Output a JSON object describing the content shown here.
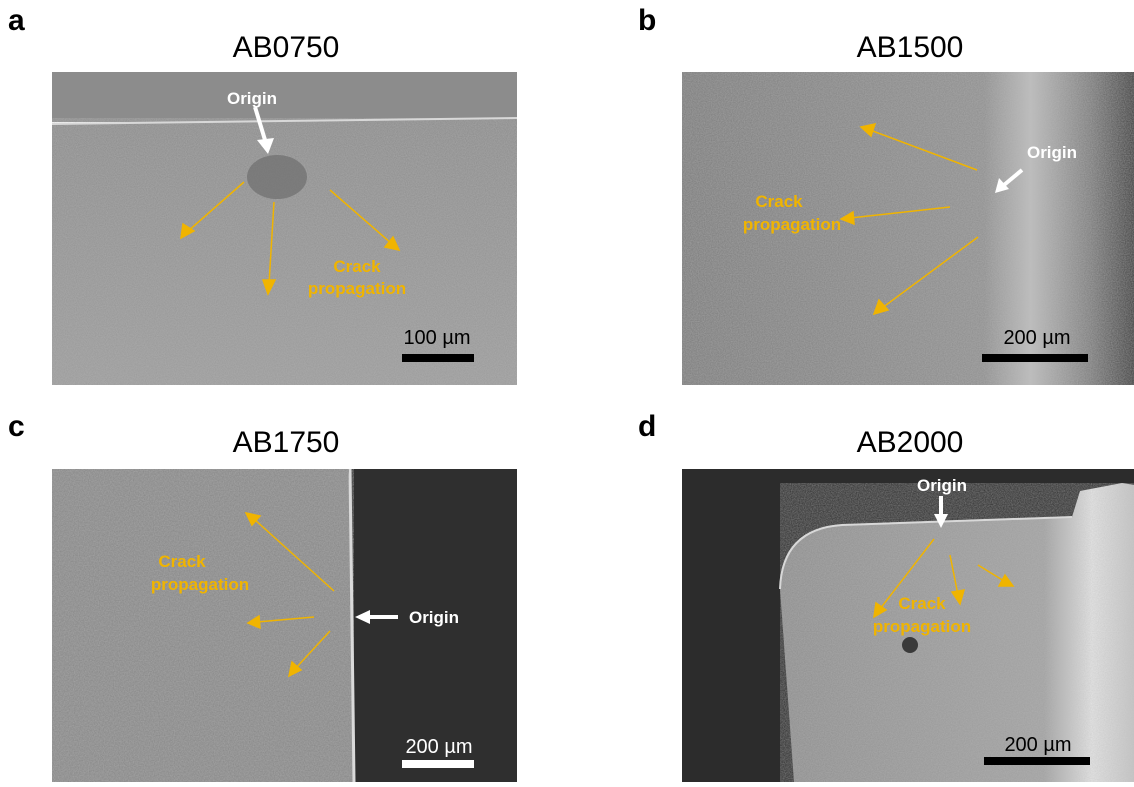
{
  "panels": [
    {
      "letter": "a",
      "title": "AB0750",
      "origin_label": "Origin",
      "crack_label_line1": "Crack",
      "crack_label_line2": "propagation",
      "scale_label": "100 µm"
    },
    {
      "letter": "b",
      "title": "AB1500",
      "origin_label": "Origin",
      "crack_label_line1": "Crack",
      "crack_label_line2": "propagation",
      "scale_label": "200 µm"
    },
    {
      "letter": "c",
      "title": "AB1750",
      "origin_label": "Origin",
      "crack_label_line1": "Crack",
      "crack_label_line2": "propagation",
      "scale_label": "200 µm"
    },
    {
      "letter": "d",
      "title": "AB2000",
      "origin_label": "Origin",
      "crack_label_line1": "Crack",
      "crack_label_line2": "propagation",
      "scale_label": "200 µm"
    }
  ],
  "colors": {
    "arrow_crack": "#f0b400",
    "arrow_origin": "#ffffff",
    "label_crack": "#f0b400",
    "label_origin": "#ffffff",
    "scalebar_dark": "#000000",
    "scalebar_light": "#ffffff"
  }
}
